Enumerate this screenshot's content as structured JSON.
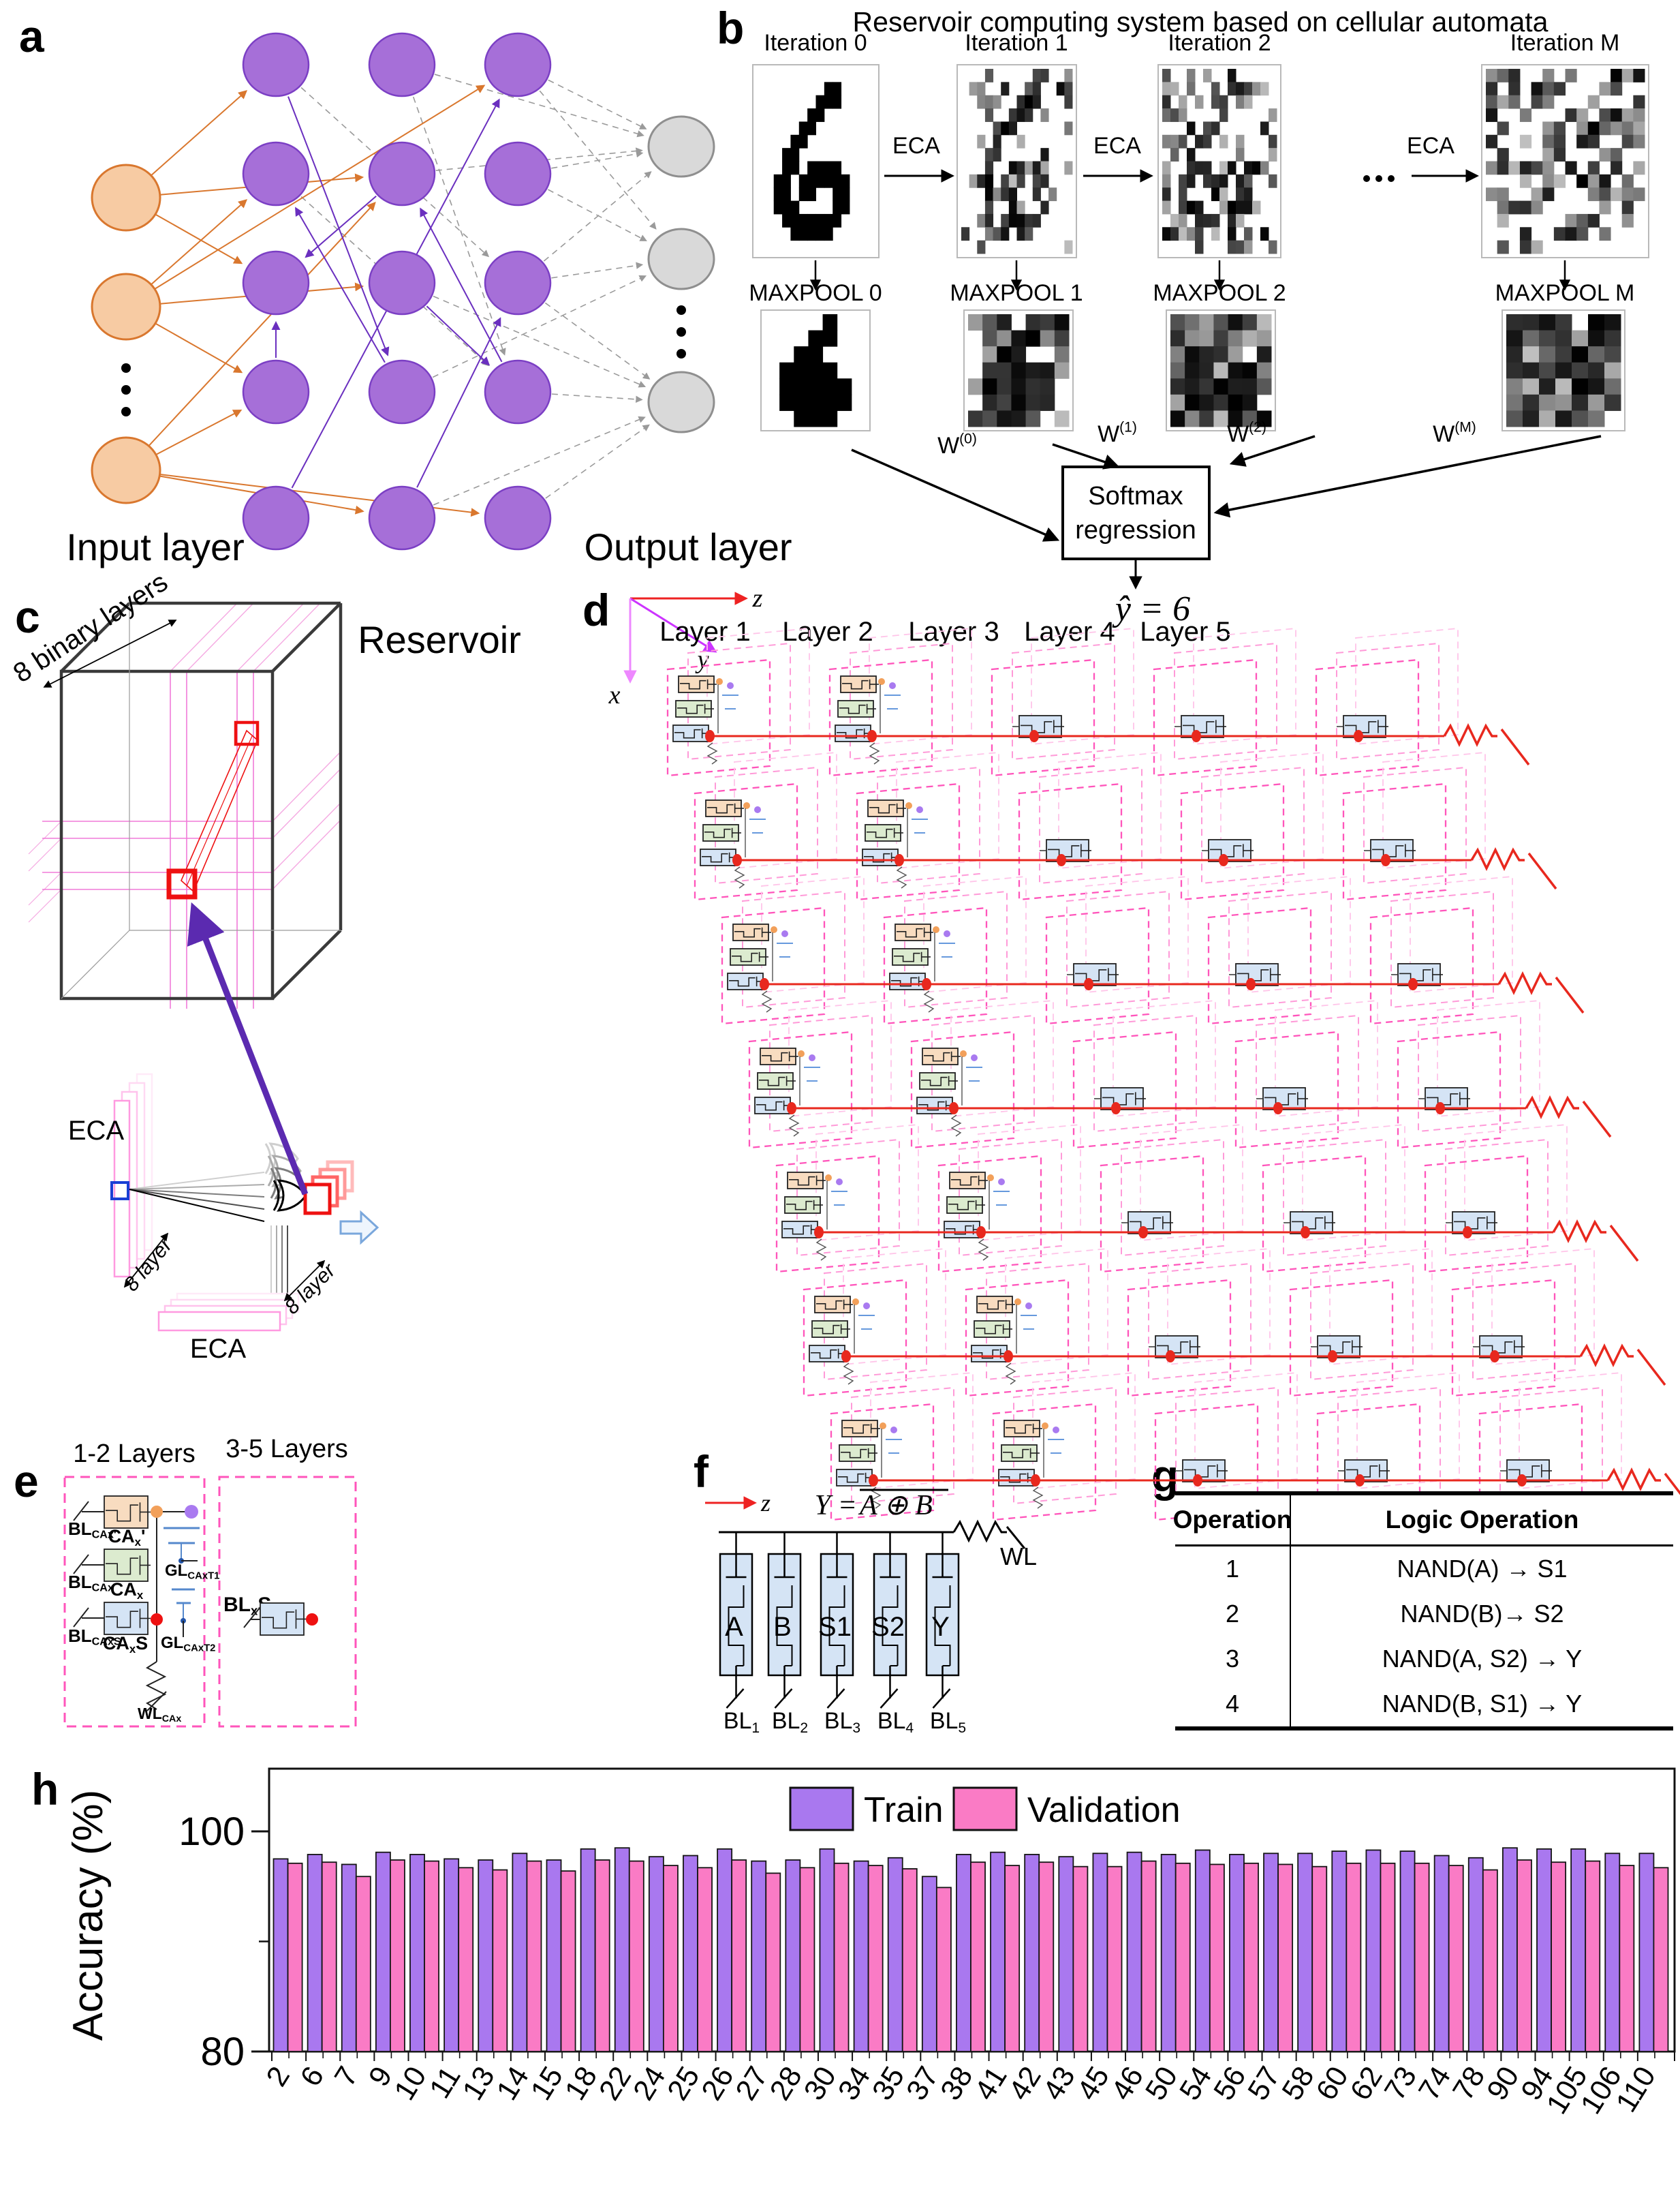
{
  "colors": {
    "train": "#a978ef",
    "validation": "#fa7bc5",
    "input_node": "#f7cba3",
    "input_stroke": "#d9772e",
    "reservoir_node": "#a66fd8",
    "reservoir_stroke": "#7b3fc4",
    "output_node": "#d9d9d9",
    "output_stroke": "#8f8f8f",
    "orange_edge": "#d9772e",
    "purple_edge": "#6a2fbf",
    "gray_edge": "#9a9a9a",
    "pink_dashed": "#ff55bb",
    "accent_red": "#ee1111",
    "fef_orange": "#f8dcc0",
    "fef_green": "#dcebcf",
    "fef_blue": "#d5e4f5"
  },
  "panels": {
    "a": {
      "label": "a",
      "input_layer": "Input layer",
      "reservoir": "Reservoir",
      "output_layer": "Output layer"
    },
    "b": {
      "label": "b",
      "title": "Reservoir computing system based on cellular automata",
      "iterations": [
        "Iteration 0",
        "Iteration 1",
        "Iteration 2",
        "Iteration M"
      ],
      "eca": "ECA",
      "ellipsis": "•••",
      "maxpools": [
        "MAXPOOL 0",
        "MAXPOOL 1",
        "MAXPOOL 2",
        "MAXPOOL M"
      ],
      "weights": [
        "W^(0)^",
        "W^(1)^",
        "W^(2)^",
        "W^(M)^"
      ],
      "softmax_line1": "Softmax",
      "softmax_line2": "regression",
      "prediction": "ŷ = 6",
      "iteration_noise": [
        0,
        0.38,
        0.6,
        0.9
      ],
      "digit_bitmap": [
        "..............",
        "........##....",
        ".......###....",
        "......##......",
        ".....##.......",
        "....##........",
        "...##.........",
        "...##.####....",
        "..##.######...",
        "..##.##..##...",
        "..###....##...",
        "...#######....",
        "....#####.....",
        ".............."
      ]
    },
    "c": {
      "label": "c",
      "binary_layers": "8 binary layers",
      "eca_left": "ECA",
      "eca_bottom": "ECA",
      "eight_layer_left": "8 layer",
      "eight_layer_bottom": "8 layer"
    },
    "d": {
      "label": "d",
      "axis_x": "x",
      "axis_y": "y",
      "axis_z": "z",
      "layers": [
        "Layer 1",
        "Layer 2",
        "Layer 3",
        "Layer 4",
        "Layer 5"
      ]
    },
    "e": {
      "label": "e",
      "left_title": "1-2 Layers",
      "right_title": "3-5 Layers",
      "bl1": "BL~CAx'~",
      "ca1": "CA~x~'",
      "bl2": "BL~CAx~",
      "ca2": "CA~x~",
      "bl3": "BL~CAxS~",
      "ca3": "CA~x~S",
      "gl1": "GL~CAxT1~",
      "gl2": "GL~CAxT2~",
      "wl": "WL~CAx~",
      "right_bl": "BL~x~S~m~"
    },
    "f": {
      "label": "f",
      "z": "z",
      "equation_pre": "Y = ",
      "equation_over": "A ⊕ B",
      "wl": "WL",
      "transistors": [
        "A",
        "B",
        "S1",
        "S2",
        "Y"
      ],
      "bit_lines": [
        "BL~1~",
        "BL~2~",
        "BL~3~",
        "BL~4~",
        "BL~5~"
      ]
    },
    "g": {
      "label": "g",
      "headers": [
        "Operation",
        "Logic Operation"
      ],
      "rows": [
        [
          "1",
          "NAND(A) → S1"
        ],
        [
          "2",
          "NAND(B)→ S2"
        ],
        [
          "3",
          "NAND(A, S2) → Y"
        ],
        [
          "4",
          "NAND(B, S1) → Y"
        ]
      ]
    },
    "h": {
      "label": "h"
    }
  },
  "chart_data": {
    "type": "bar",
    "title": "",
    "xlabel": "",
    "ylabel": "Accuracy (%)",
    "ylim": [
      80,
      106
    ],
    "yticks": [
      80,
      100
    ],
    "minor_yticks": [
      90
    ],
    "grid": false,
    "legend_position": "top-inside",
    "categories": [
      2,
      6,
      7,
      9,
      10,
      11,
      13,
      14,
      15,
      18,
      22,
      24,
      25,
      26,
      27,
      28,
      30,
      34,
      35,
      37,
      38,
      41,
      42,
      43,
      45,
      46,
      50,
      54,
      56,
      57,
      58,
      60,
      62,
      73,
      74,
      78,
      90,
      94,
      105,
      106,
      110
    ],
    "series": [
      {
        "name": "Train",
        "color": "#a978ef",
        "values": [
          97.5,
          97.9,
          97.0,
          98.1,
          97.9,
          97.5,
          97.4,
          98.0,
          97.4,
          98.4,
          98.5,
          97.7,
          97.8,
          98.4,
          97.3,
          97.4,
          98.4,
          97.3,
          97.6,
          95.9,
          97.9,
          98.1,
          97.9,
          97.7,
          98.0,
          98.1,
          97.9,
          98.3,
          97.9,
          98.0,
          98.0,
          98.2,
          98.3,
          98.2,
          97.8,
          97.6,
          98.5,
          98.4,
          98.4,
          98.0,
          98.0
        ]
      },
      {
        "name": "Validation",
        "color": "#fa7bc5",
        "values": [
          97.1,
          97.2,
          95.9,
          97.4,
          97.3,
          96.7,
          96.5,
          97.3,
          96.4,
          97.4,
          97.3,
          96.9,
          96.7,
          97.4,
          96.2,
          96.7,
          97.1,
          96.9,
          96.6,
          94.9,
          97.2,
          96.9,
          97.2,
          96.8,
          96.8,
          97.3,
          97.1,
          97.0,
          97.1,
          97.0,
          96.8,
          97.1,
          97.1,
          97.1,
          96.9,
          96.5,
          97.4,
          97.2,
          97.3,
          96.9,
          96.7
        ]
      }
    ]
  }
}
